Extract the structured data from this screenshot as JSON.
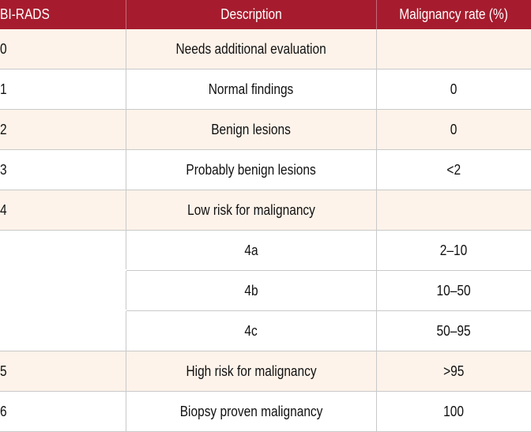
{
  "table": {
    "headers": {
      "col1": "BI-RADS",
      "col2": "Description",
      "col3": "Malignancy rate (%)"
    },
    "rows": [
      {
        "category": "0",
        "description": "Needs additional evaluation",
        "rate": ""
      },
      {
        "category": "1",
        "description": "Normal findings",
        "rate": "0"
      },
      {
        "category": "2",
        "description": "Benign lesions",
        "rate": "0"
      },
      {
        "category": "3",
        "description": "Probably benign lesions",
        "rate": "<2"
      },
      {
        "category": "4",
        "description": "Low risk for malignancy",
        "rate": ""
      },
      {
        "category": "",
        "description": "4a",
        "rate": "2–10"
      },
      {
        "category": "",
        "description": "4b",
        "rate": "10–50"
      },
      {
        "category": "",
        "description": "4c",
        "rate": "50–95"
      },
      {
        "category": "5",
        "description": "High risk for malignancy",
        "rate": ">95"
      },
      {
        "category": "6",
        "description": "Biopsy proven malignancy",
        "rate": "100"
      }
    ]
  },
  "colors": {
    "header_background": "#a61c2e",
    "header_text": "#ffffff",
    "shaded_row": "#fdf3ea",
    "plain_row": "#ffffff",
    "grid_line": "#c9c9c9"
  }
}
